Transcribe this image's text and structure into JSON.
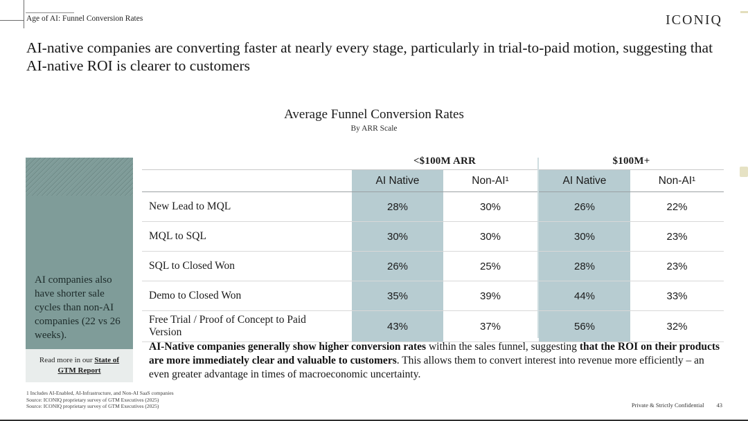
{
  "page": {
    "eyebrow": "Age of AI: Funnel Conversion Rates",
    "logo": "ICONIQ",
    "title": "AI-native companies are converting faster at nearly every stage, particularly in trial-to-paid motion, suggesting that AI-native ROI is clearer to customers",
    "footnotes": [
      "1 Includes AI-Enabled, AI-Infrastructure, and Non-AI SaaS companies",
      "Source: ICONIQ proprietary survey of GTM Executives (2025)",
      "Source: ICONIQ proprietary survey of GTM Executives (2025)"
    ],
    "confidential": "Private & Strictly Confidential",
    "page_number": "43"
  },
  "chart_data": {
    "type": "table",
    "title": "Average Funnel Conversion Rates",
    "subtitle": "By ARR Scale",
    "column_groups": {
      "0": "<$100M ARR",
      "1": "$100M+"
    },
    "columns": {
      "0": "AI Native",
      "1": "Non-AI¹",
      "2": "AI Native",
      "3": "Non-AI¹"
    },
    "highlight_color": "#b7ccd1",
    "highlighted_columns": [
      "AI Native (<$100M ARR)",
      "AI Native ($100M+)"
    ],
    "rows": [
      {
        "label": "New Lead to MQL",
        "values": [
          "28%",
          "30%",
          "26%",
          "22%"
        ]
      },
      {
        "label": "MQL to SQL",
        "values": [
          "30%",
          "30%",
          "30%",
          "23%"
        ]
      },
      {
        "label": "SQL to Closed Won",
        "values": [
          "26%",
          "25%",
          "28%",
          "23%"
        ]
      },
      {
        "label": "Demo to Closed Won",
        "values": [
          "35%",
          "39%",
          "44%",
          "33%"
        ]
      },
      {
        "label": "Free Trial / Proof of Concept to Paid Version",
        "values": [
          "43%",
          "37%",
          "56%",
          "32%"
        ]
      }
    ]
  },
  "sidebar": {
    "callout": "AI companies also have shorter sale cycles than non-AI companies (22 vs 26 weeks).",
    "readmore_prefix": "Read more in our ",
    "readmore_link": "State of GTM Report",
    "bg": "#7f9c99"
  },
  "takeaway": {
    "segments": [
      {
        "text": "AI-Native companies generally show higher conversion rates",
        "bold": true
      },
      {
        "text": " within the sales funnel, suggesting ",
        "bold": false
      },
      {
        "text": "that the ROI on their products are more immediately clear and valuable to customers",
        "bold": true
      },
      {
        "text": ". This allows them to convert interest into revenue more efficiently – an even greater advantage in times of macroeconomic uncertainty.",
        "bold": false
      }
    ]
  }
}
